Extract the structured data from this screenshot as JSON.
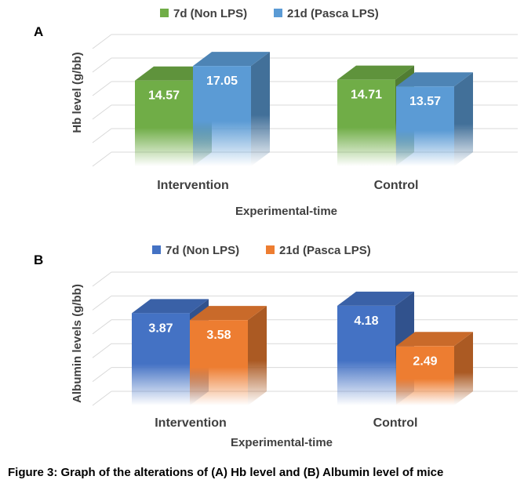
{
  "chart_data": [
    {
      "type": "bar",
      "style": "3d-clustered-column",
      "panel_label": "A",
      "title": "",
      "ylabel": "Hb level (g/bb)",
      "xlabel": "Experimental-time",
      "categories": [
        "Intervention",
        "Control"
      ],
      "series": [
        {
          "name": "7d (Non LPS)",
          "values": [
            14.57,
            14.71
          ],
          "color": "#70AD47"
        },
        {
          "name": "21d (Pasca LPS)",
          "values": [
            17.05,
            13.57
          ],
          "color": "#5B9BD5"
        }
      ],
      "ylim": [
        0,
        20
      ],
      "grid": true,
      "legend": "top-center"
    },
    {
      "type": "bar",
      "style": "3d-clustered-column",
      "panel_label": "B",
      "title": "",
      "ylabel": "Albumin levels  (g/bb)",
      "xlabel": "Experimental-time",
      "categories": [
        "Intervention",
        "Control"
      ],
      "series": [
        {
          "name": "7d (Non LPS)",
          "values": [
            3.87,
            4.18
          ],
          "color": "#4472C4"
        },
        {
          "name": "21d (Pasca LPS)",
          "values": [
            3.58,
            2.49
          ],
          "color": "#ED7D31"
        }
      ],
      "ylim": [
        0,
        5
      ],
      "grid": true,
      "legend": "top-center"
    }
  ],
  "caption": "Figure 3: Graph of the alterations of (A) Hb level and (B) Albumin level of mice"
}
